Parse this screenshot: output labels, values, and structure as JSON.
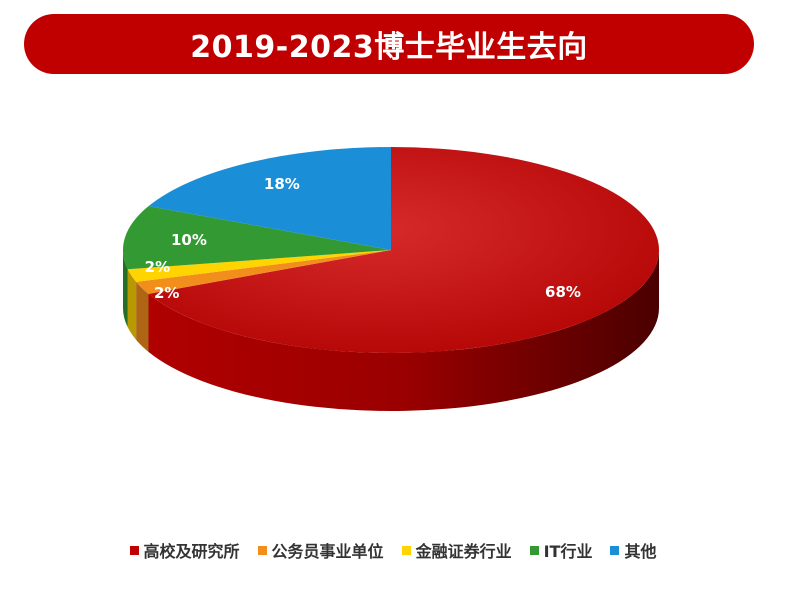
{
  "chart_data": {
    "type": "pie",
    "title": "2019-2023博士毕业生去向",
    "categories": [
      "高校及研究所",
      "公务员事业单位",
      "金融证券行业",
      "IT行业",
      "其他"
    ],
    "values": [
      68,
      2,
      2,
      10,
      18
    ],
    "value_labels": [
      "68%",
      "2%",
      "2%",
      "10%",
      "18%"
    ],
    "colors": [
      "#c00000",
      "#f28e1c",
      "#ffd400",
      "#339933",
      "#1a8fd8"
    ],
    "legend_position": "bottom"
  },
  "colors": {
    "title_bar": "#c00000"
  }
}
